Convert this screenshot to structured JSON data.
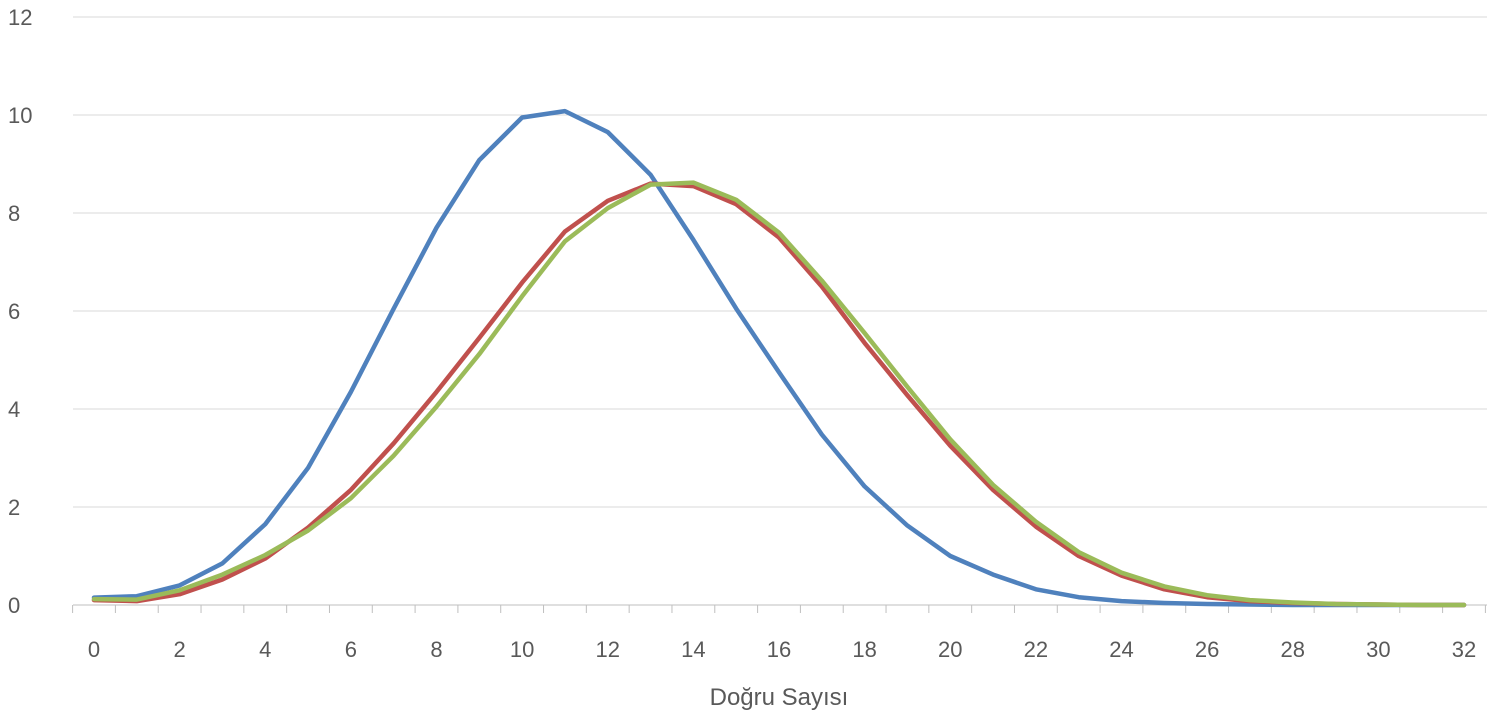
{
  "chart_data": {
    "type": "line",
    "title": "",
    "xlabel": "Doğru Sayısı",
    "ylabel": "",
    "x": [
      0,
      1,
      2,
      3,
      4,
      5,
      6,
      7,
      8,
      9,
      10,
      11,
      12,
      13,
      14,
      15,
      16,
      17,
      18,
      19,
      20,
      21,
      22,
      23,
      24,
      25,
      26,
      27,
      28,
      29,
      30,
      31,
      32
    ],
    "x_tick_labels": [
      "0",
      "2",
      "4",
      "6",
      "8",
      "10",
      "12",
      "14",
      "16",
      "18",
      "20",
      "22",
      "24",
      "26",
      "28",
      "30",
      "32"
    ],
    "y_tick_labels": [
      "0",
      "2",
      "4",
      "6",
      "8",
      "10",
      "12"
    ],
    "xlim": [
      0,
      32
    ],
    "ylim": [
      0,
      12
    ],
    "grid": "horizontal",
    "legend": "none",
    "series": [
      {
        "color": "#4f81bd",
        "values": [
          0.15,
          0.18,
          0.4,
          0.85,
          1.65,
          2.8,
          4.35,
          6.05,
          7.7,
          9.08,
          9.95,
          10.08,
          9.65,
          8.78,
          7.45,
          6.05,
          4.75,
          3.48,
          2.42,
          1.62,
          1.0,
          0.62,
          0.32,
          0.16,
          0.08,
          0.04,
          0.02,
          0.01,
          0.0,
          0.0,
          0.0,
          0.0,
          0.0
        ]
      },
      {
        "color": "#c0504d",
        "values": [
          0.1,
          0.08,
          0.22,
          0.52,
          0.95,
          1.58,
          2.35,
          3.3,
          4.35,
          5.45,
          6.58,
          7.62,
          8.25,
          8.6,
          8.55,
          8.18,
          7.5,
          6.5,
          5.35,
          4.28,
          3.25,
          2.35,
          1.6,
          1.0,
          0.6,
          0.32,
          0.16,
          0.08,
          0.04,
          0.02,
          0.01,
          0.0,
          0.0
        ]
      },
      {
        "color": "#9bbb59",
        "values": [
          0.12,
          0.11,
          0.3,
          0.62,
          1.02,
          1.52,
          2.18,
          3.05,
          4.05,
          5.12,
          6.3,
          7.42,
          8.1,
          8.58,
          8.62,
          8.27,
          7.6,
          6.62,
          5.55,
          4.45,
          3.38,
          2.45,
          1.7,
          1.08,
          0.66,
          0.38,
          0.2,
          0.1,
          0.05,
          0.02,
          0.01,
          0.0,
          0.0
        ]
      }
    ]
  }
}
